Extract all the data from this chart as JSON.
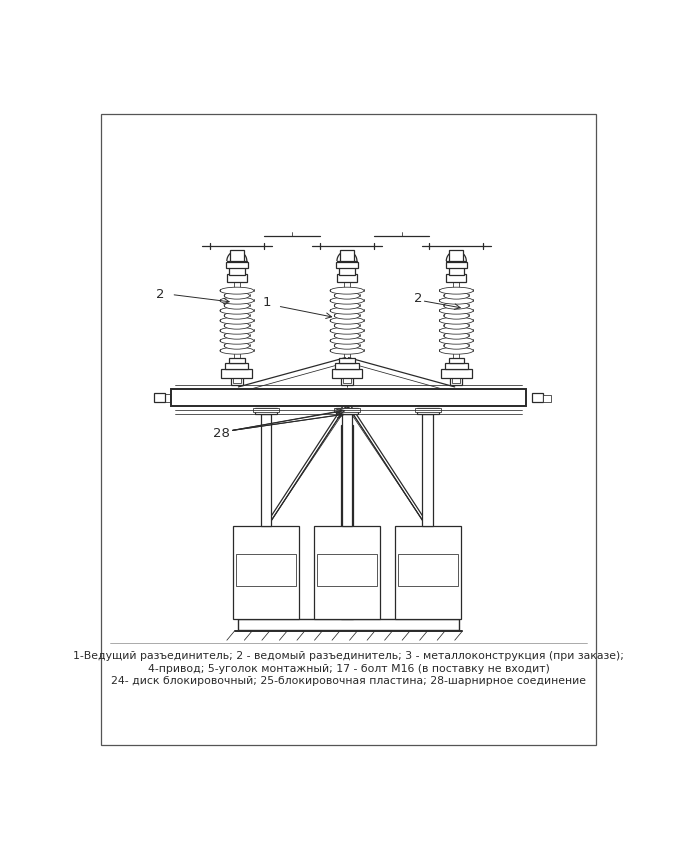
{
  "bg_color": "#ffffff",
  "line_color": "#2a2a2a",
  "caption_line1": "1-Ведущий разъединитель; 2 - ведомый разъединитель; 3 - металлоконструкция (при заказе);",
  "caption_line2": "4-привод; 5-уголок монтажный; 17 - болт М16 (в поставку не входит)",
  "caption_line3": "24- диск блокировочный; 25-блокировочная пластина; 28-шарнирное соединение",
  "label_1": "1",
  "label_2_left": "2",
  "label_2_right": "2",
  "label_28": "28",
  "lw": 0.9,
  "lw_thick": 1.4,
  "lw_thin": 0.55,
  "lw_med": 1.0
}
